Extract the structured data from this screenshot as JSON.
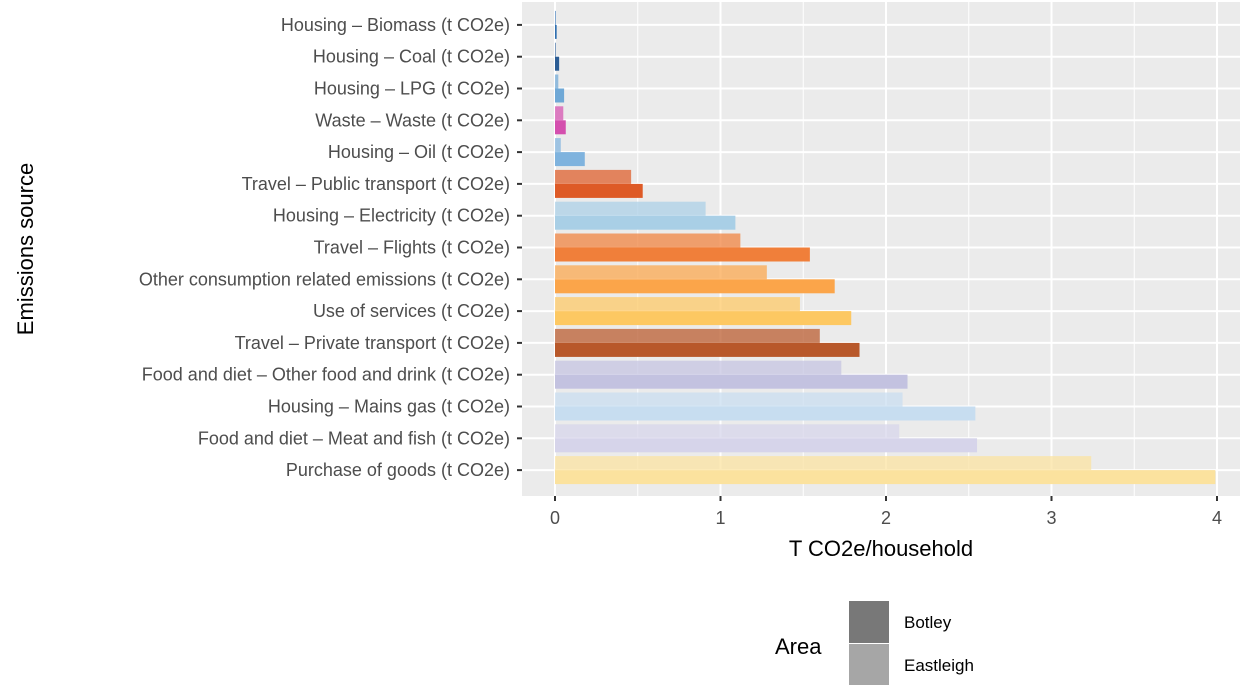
{
  "chart_data": {
    "type": "bar",
    "orientation": "horizontal",
    "xlabel": "T CO2e/household",
    "ylabel": "Emissions source",
    "xlim": [
      0,
      4.05
    ],
    "x_ticks": [
      "0",
      "1",
      "2",
      "3",
      "4"
    ],
    "grid": true,
    "categories": [
      "Housing – Biomass (t CO2e)",
      "Housing – Coal (t CO2e)",
      "Housing – LPG (t CO2e)",
      "Waste – Waste (t CO2e)",
      "Housing – Oil (t CO2e)",
      "Travel – Public transport (t CO2e)",
      "Housing – Electricity (t CO2e)",
      "Travel – Flights (t CO2e)",
      "Other consumption related emissions (t CO2e)",
      "Use of services (t CO2e)",
      "Travel – Private transport (t CO2e)",
      "Food and diet – Other food and drink (t CO2e)",
      "Housing – Mains gas (t CO2e)",
      "Food and diet – Meat and fish (t CO2e)",
      "Purchase of goods (t CO2e)"
    ],
    "category_colors": [
      "#2f6fb0",
      "#2b5c94",
      "#6fa8d6",
      "#d44fae",
      "#7fb3de",
      "#de5a26",
      "#a9cfe6",
      "#f07f3a",
      "#fba54a",
      "#fdc862",
      "#b8582a",
      "#c3c2e0",
      "#c7ddf0",
      "#d6d4ea",
      "#fbe29e"
    ],
    "series": [
      {
        "name": "Botley",
        "values": [
          0.005,
          0.005,
          0.02,
          0.05,
          0.035,
          0.46,
          0.91,
          1.12,
          1.28,
          1.48,
          1.6,
          1.73,
          2.1,
          2.08,
          3.24
        ]
      },
      {
        "name": "Eastleigh",
        "values": [
          0.01,
          0.025,
          0.055,
          0.065,
          0.18,
          0.53,
          1.09,
          1.54,
          1.69,
          1.79,
          1.84,
          2.13,
          2.54,
          2.55,
          3.99
        ]
      }
    ],
    "legend": {
      "title": "Area",
      "position": "bottom",
      "entries": [
        "Botley",
        "Eastleigh"
      ],
      "colors": [
        "#787878",
        "#a6a6a6"
      ]
    }
  }
}
